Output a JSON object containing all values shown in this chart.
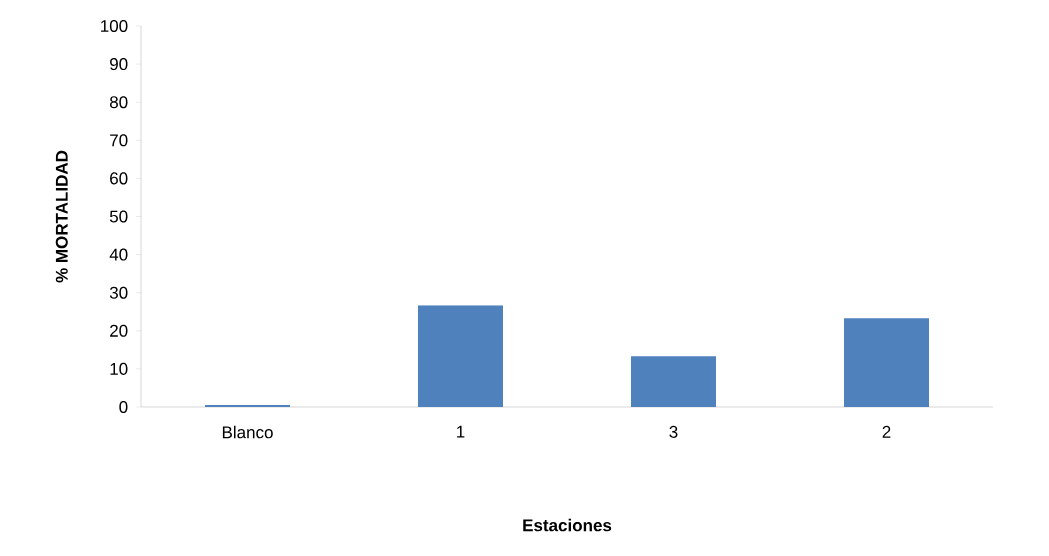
{
  "chart_data": {
    "type": "bar",
    "xlabel": "Estaciones",
    "ylabel": "% MORTALIDAD",
    "categories": [
      "Blanco",
      "1",
      "3",
      "2"
    ],
    "values": [
      0.5,
      26.7,
      13.3,
      23.3
    ],
    "color": "#4f81bd",
    "ylim": [
      0,
      100
    ],
    "yticks": [
      0,
      10,
      20,
      30,
      40,
      50,
      60,
      70,
      80,
      90,
      100
    ]
  }
}
